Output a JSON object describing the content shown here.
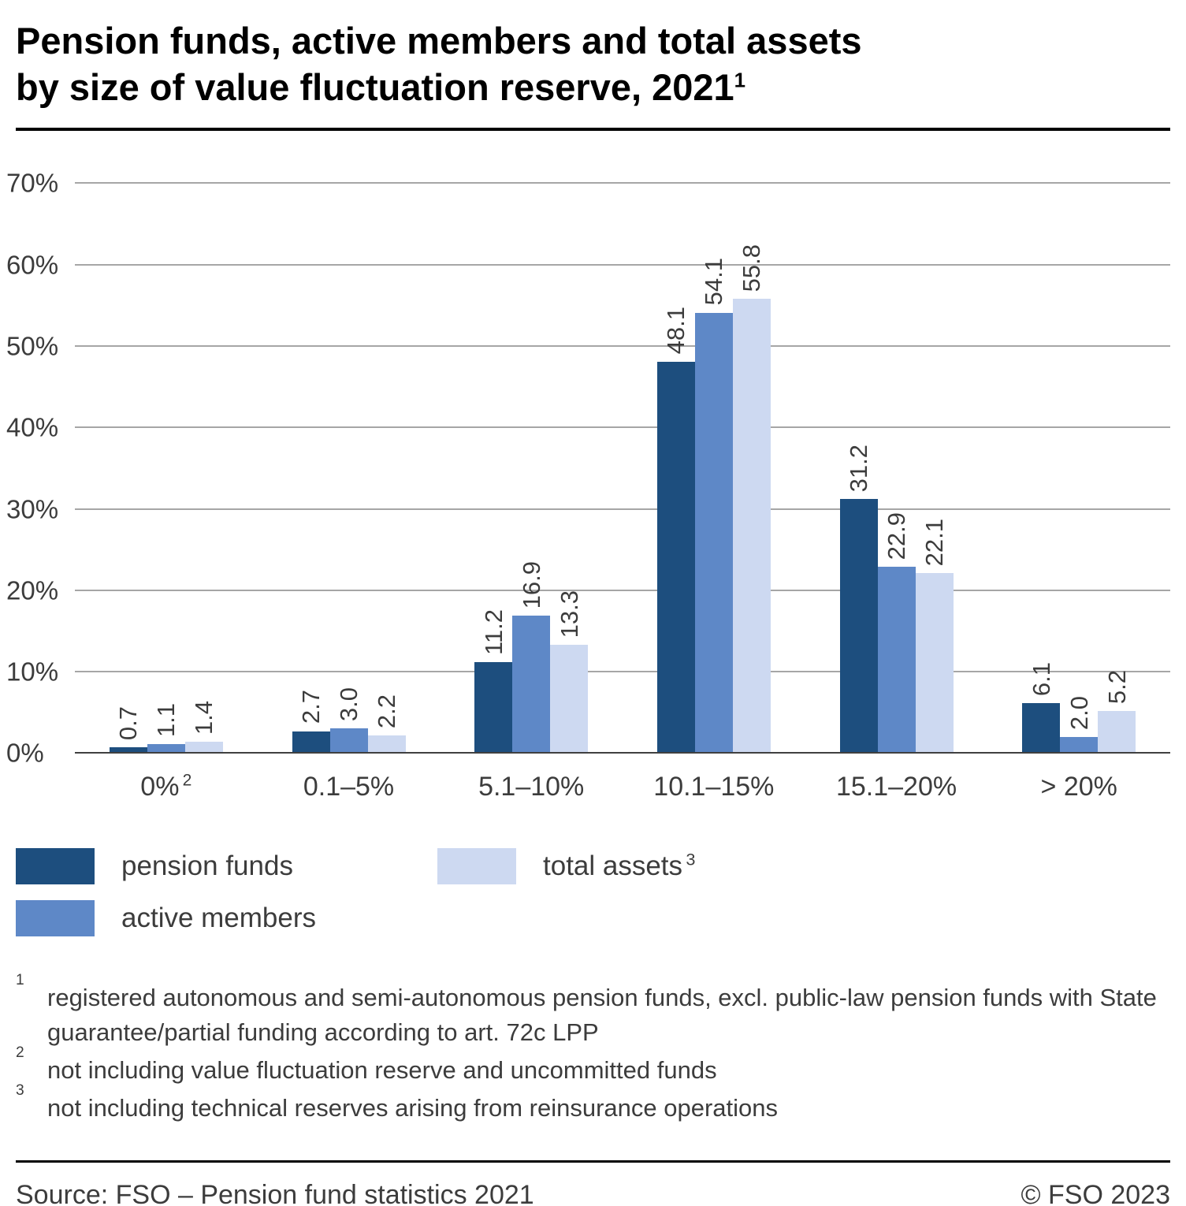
{
  "title": {
    "line1": "Pension funds, active members and total assets",
    "line2": "by size of value fluctuation reserve, 2021",
    "superscript": "1"
  },
  "chart_data": {
    "type": "bar",
    "categories": [
      "0%",
      "0.1–5%",
      "5.1–10%",
      "10.1–15%",
      "15.1–20%",
      "> 20%"
    ],
    "category_superscripts": [
      "2",
      "",
      "",
      "",
      "",
      ""
    ],
    "series": [
      {
        "name": "pension funds",
        "superscript": "",
        "color": "#1d4e7e",
        "values": [
          0.7,
          2.7,
          11.2,
          48.1,
          31.2,
          6.1
        ]
      },
      {
        "name": "active members",
        "superscript": "",
        "color": "#5e88c7",
        "values": [
          1.1,
          3.0,
          16.9,
          54.1,
          22.9,
          2.0
        ]
      },
      {
        "name": "total assets",
        "superscript": "3",
        "color": "#cdd9f1",
        "values": [
          1.4,
          2.2,
          13.3,
          55.8,
          22.1,
          5.2
        ]
      }
    ],
    "ylim": [
      0,
      70
    ],
    "ytick_step": 10,
    "ytick_suffix": "%",
    "grid": true,
    "legend_position": "bottom",
    "value_label_decimals": 1
  },
  "colors": {
    "gridline": "#a6a6a6",
    "axis": "#404040",
    "text": "#3c3c3c"
  },
  "footnotes": [
    {
      "marker": "1",
      "text": "registered autonomous and semi-autonomous pension funds, excl. public-law pension funds with State guarantee/partial funding according to art. 72c LPP"
    },
    {
      "marker": "2",
      "text": "not including value fluctuation reserve and uncommitted funds"
    },
    {
      "marker": "3",
      "text": "not including technical reserves arising from reinsurance operations"
    }
  ],
  "footer": {
    "source": "Source: FSO – Pension fund statistics 2021",
    "copyright": "© FSO 2023"
  }
}
